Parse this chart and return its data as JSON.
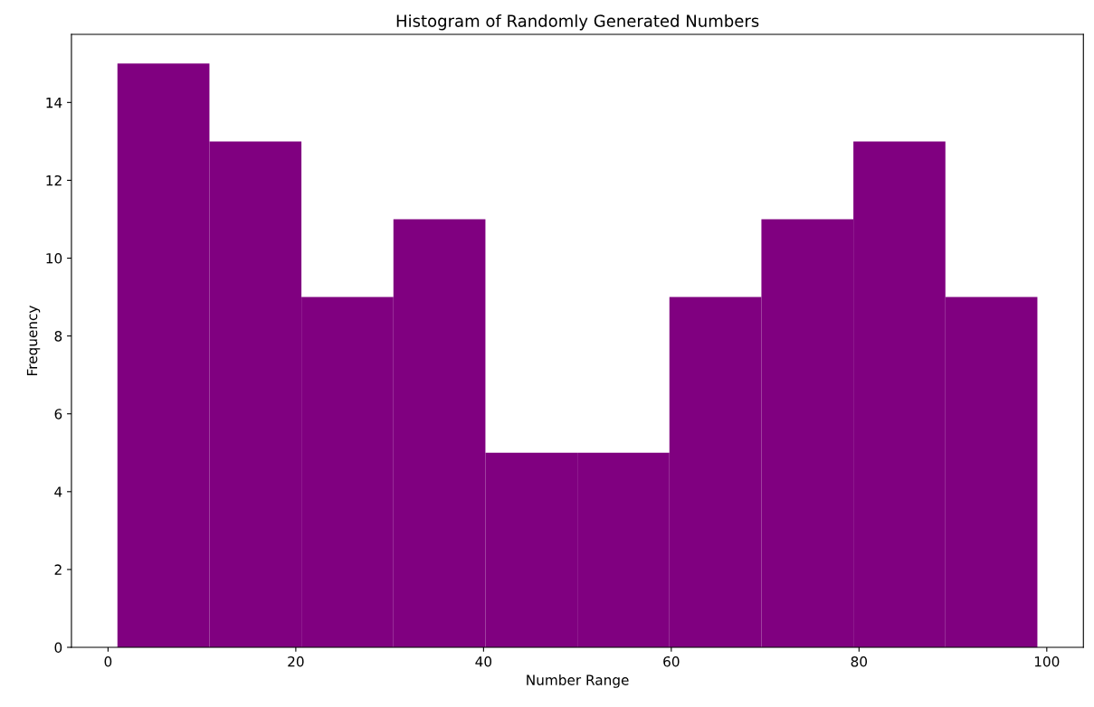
{
  "chart_data": {
    "type": "histogram",
    "title": "Histogram of Randomly Generated Numbers",
    "xlabel": "Number Range",
    "ylabel": "Frequency",
    "bins": [
      1,
      10.8,
      20.6,
      30.4,
      40.2,
      50,
      59.8,
      69.6,
      79.4,
      89.2,
      99
    ],
    "values": [
      15,
      13,
      9,
      11,
      5,
      5,
      9,
      11,
      13,
      9
    ],
    "color": "#800080",
    "xlim": [
      -3.9,
      103.9
    ],
    "xticks": [
      0,
      20,
      40,
      60,
      80,
      100
    ],
    "ylim": [
      0,
      15.75
    ],
    "yticks": [
      0,
      2,
      4,
      6,
      8,
      10,
      12,
      14
    ],
    "grid": false
  }
}
